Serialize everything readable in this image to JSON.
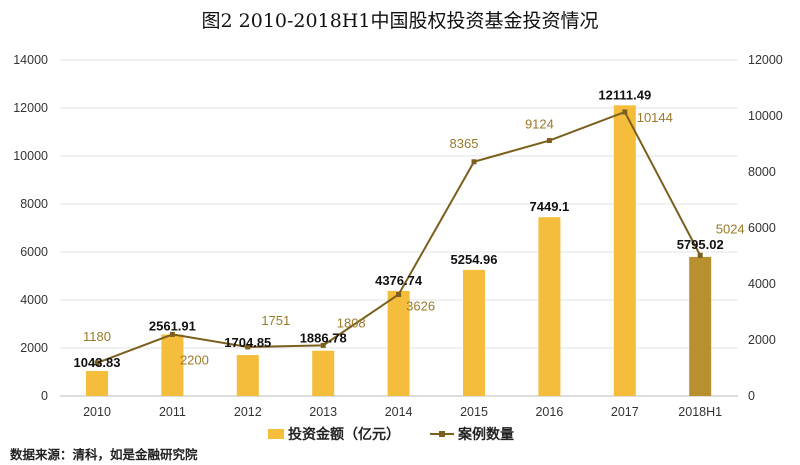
{
  "chart_data": {
    "type": "bar+line",
    "title": "图2  2010-2018H1中国股权投资基金投资情况",
    "categories": [
      "2010",
      "2011",
      "2012",
      "2013",
      "2014",
      "2015",
      "2016",
      "2017",
      "2018H1"
    ],
    "series": [
      {
        "name": "投资金额（亿元）",
        "type": "bar",
        "axis": "left",
        "color": "#f4bd3c",
        "highlight_last_color": "#b8902f",
        "values": [
          1043.83,
          2561.91,
          1704.85,
          1886.78,
          4376.74,
          5254.96,
          7449.1,
          12111.49,
          5795.02
        ],
        "labels": [
          "1043.83",
          "2561.91",
          "1704.85",
          "1886.78",
          "4376.74",
          "5254.96",
          "7449.1",
          "12111.49",
          "5795.02"
        ]
      },
      {
        "name": "案例数量",
        "type": "line",
        "axis": "right",
        "color": "#7a5f1e",
        "values": [
          1180,
          2200,
          1751,
          1808,
          3626,
          8365,
          9124,
          10144,
          5024
        ],
        "labels": [
          "1180",
          "2200",
          "1751",
          "1808",
          "3626",
          "8365",
          "9124",
          "10144",
          "5024"
        ]
      }
    ],
    "left_axis": {
      "ylim": [
        0,
        14000
      ],
      "ticks": [
        "0",
        "2000",
        "4000",
        "6000",
        "8000",
        "10000",
        "12000",
        "14000"
      ]
    },
    "right_axis": {
      "ylim": [
        0,
        12000
      ],
      "ticks": [
        "0",
        "2000",
        "4000",
        "6000",
        "8000",
        "10000",
        "12000"
      ]
    },
    "grid": true,
    "legend": "bottom"
  },
  "source": "数据来源：清科，如是金融研究院"
}
